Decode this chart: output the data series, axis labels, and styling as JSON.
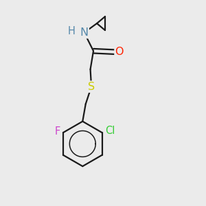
{
  "background_color": "#ebebeb",
  "bond_color": "#1a1a1a",
  "atom_colors": {
    "N": "#5588aa",
    "O": "#ff2200",
    "S": "#cccc00",
    "Cl": "#33cc33",
    "F": "#cc44cc",
    "H": "#5588aa",
    "C": "#1a1a1a"
  },
  "figsize": [
    3.0,
    3.0
  ],
  "dpi": 100
}
